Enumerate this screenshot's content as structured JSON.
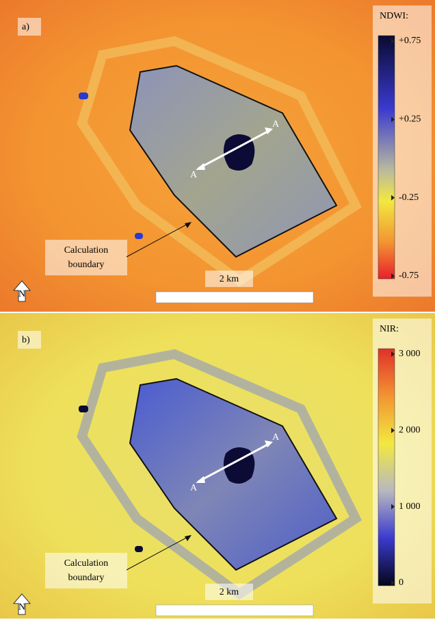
{
  "panels": [
    {
      "label": "a)",
      "colorbar": {
        "title": "NDWI:",
        "ticks": [
          "+0.75",
          "+0.25",
          "-0.25",
          "-0.75"
        ]
      },
      "section_labels": [
        "A",
        "A"
      ],
      "annotation": [
        "Calculation",
        "boundary"
      ],
      "scale_bar": "2 km",
      "north": "N"
    },
    {
      "label": "b)",
      "colorbar": {
        "title": "NIR:",
        "ticks": [
          "3 000",
          "2 000",
          "1 000",
          "0"
        ]
      },
      "section_labels": [
        "A",
        "A"
      ],
      "annotation": [
        "Calculation",
        "boundary"
      ],
      "scale_bar": "2 km",
      "north": "N"
    }
  ]
}
